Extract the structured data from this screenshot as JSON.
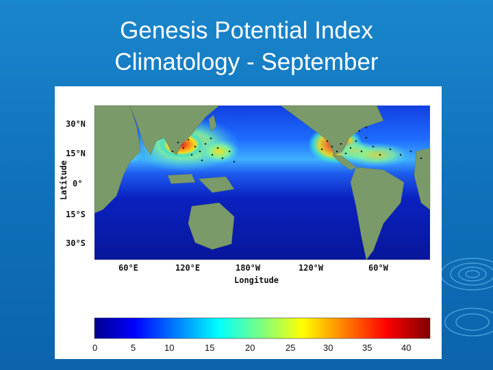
{
  "slide": {
    "title_line1": "Genesis Potential Index",
    "title_line2": "Climatology - September"
  },
  "map": {
    "ylabel": "Latitude",
    "xlabel": "Longitude",
    "lat_ticks": [
      "30°N",
      "15°N",
      "0°",
      "15°S",
      "30°S"
    ],
    "lon_ticks": [
      "60°E",
      "120°E",
      "180°W",
      "120°W",
      "60°W"
    ],
    "colors": {
      "ocean_low": "#0a1fb8",
      "ocean_mid": "#1a6cff",
      "land": "#7a9a6a",
      "high": "#d42020"
    }
  },
  "colorbar": {
    "ticks": [
      "0",
      "5",
      "10",
      "15",
      "20",
      "25",
      "30",
      "35",
      "40"
    ],
    "range": [
      0,
      40
    ]
  }
}
